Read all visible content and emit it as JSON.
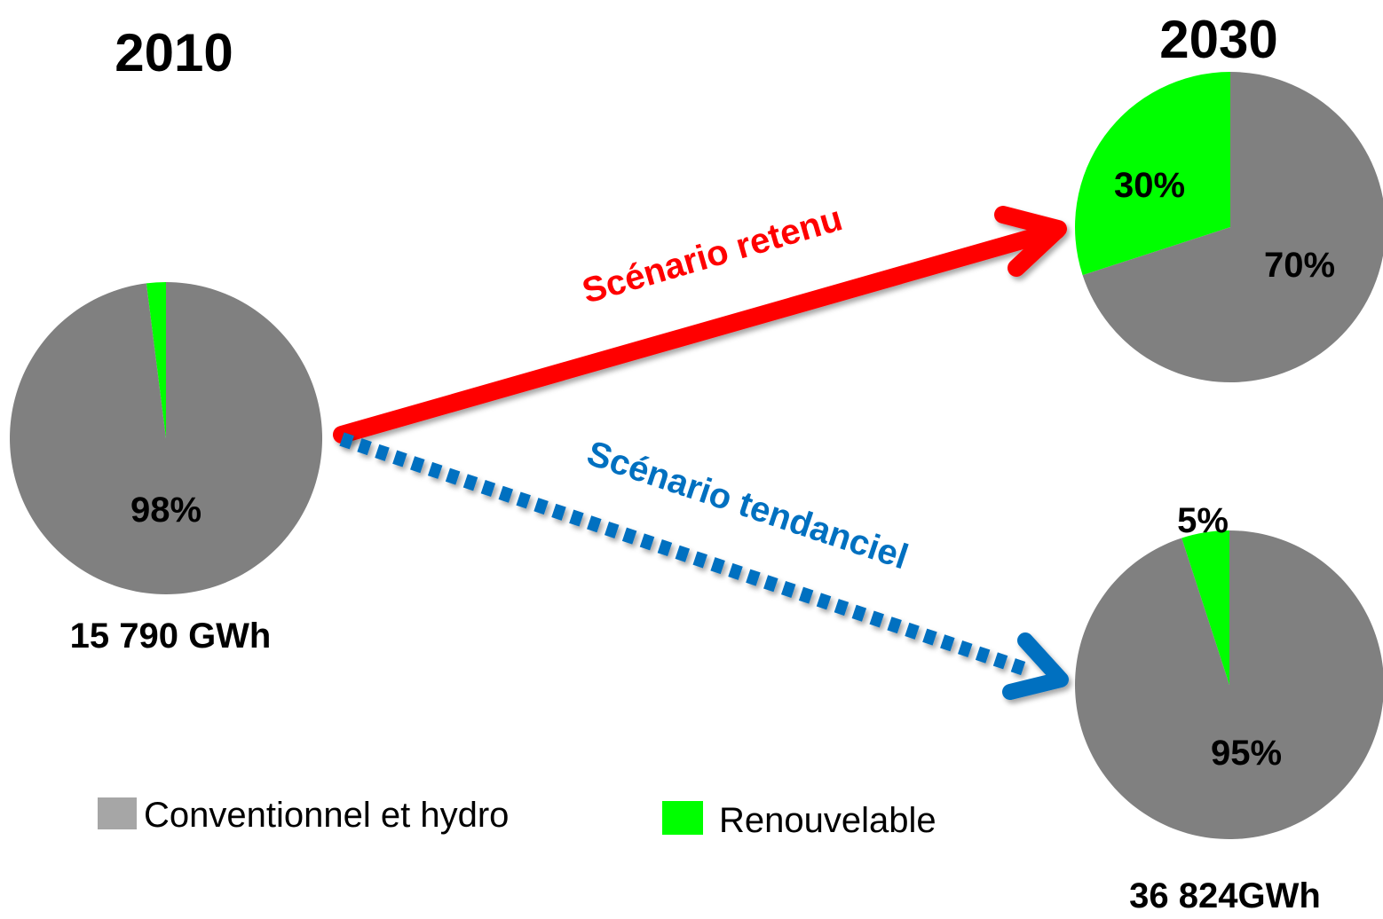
{
  "colors": {
    "conventional": "#808080",
    "renewable": "#00ff00",
    "legend_conventional": "#a6a6a6",
    "retained_arrow": "#ff0000",
    "trend_arrow": "#0070c0",
    "text": "#000000"
  },
  "headings": {
    "year_2010": "2010",
    "year_2030": "2030"
  },
  "totals": {
    "total_2010": "15 790 GWh",
    "total_2030": "36 824GWh"
  },
  "arrows": {
    "retained_label": "Scénario retenu",
    "trend_label": "Scénario tendanciel"
  },
  "legend": {
    "conventional_label": "Conventionnel et hydro",
    "renewable_label": "Renouvelable"
  },
  "chart_data": [
    {
      "type": "pie",
      "year": "2010",
      "categories": [
        "Conventionnel et hydro",
        "Renouvelable"
      ],
      "values": [
        98,
        2
      ],
      "labels": [
        "98%",
        ""
      ],
      "total": "15 790 GWh"
    },
    {
      "type": "pie",
      "year": "2030",
      "scenario": "Scénario retenu",
      "categories": [
        "Conventionnel et hydro",
        "Renouvelable"
      ],
      "values": [
        70,
        30
      ],
      "labels": [
        "70%",
        "30%"
      ]
    },
    {
      "type": "pie",
      "year": "2030",
      "scenario": "Scénario tendanciel",
      "categories": [
        "Conventionnel et hydro",
        "Renouvelable"
      ],
      "values": [
        95,
        5
      ],
      "labels": [
        "95%",
        "5%"
      ],
      "total": "36 824GWh"
    }
  ]
}
